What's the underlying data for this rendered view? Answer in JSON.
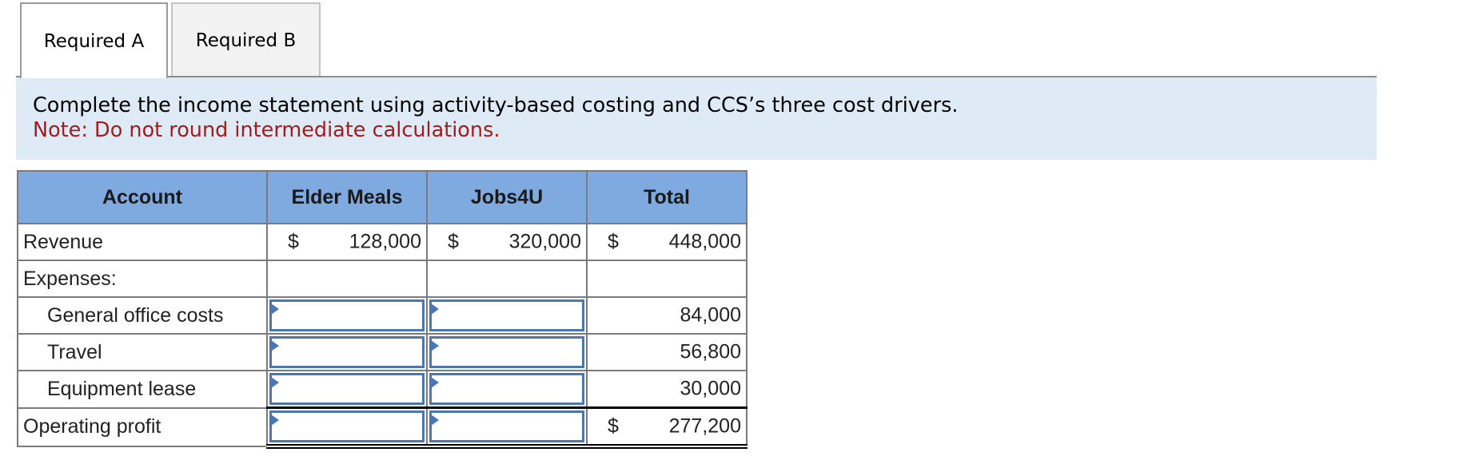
{
  "tabs": [
    {
      "label": "Required A",
      "active": true
    },
    {
      "label": "Required B",
      "active": false
    }
  ],
  "instructions": {
    "text": "Complete the income statement using activity-based costing and CCS’s three cost drivers.",
    "note": "Note: Do not round intermediate calculations."
  },
  "table": {
    "headers": [
      "Account",
      "Elder Meals",
      "Jobs4U",
      "Total"
    ],
    "rows": [
      {
        "account": "Revenue",
        "elder_meals": {
          "dollar": "$",
          "value": "128,000"
        },
        "jobs4u": {
          "dollar": "$",
          "value": "320,000"
        },
        "total": {
          "dollar": "$",
          "value": "448,000"
        }
      },
      {
        "account": "Expenses:",
        "elder_meals": "",
        "jobs4u": "",
        "total": ""
      },
      {
        "account": "General office costs",
        "elder_meals": "",
        "jobs4u": "",
        "total": {
          "value": "84,000"
        }
      },
      {
        "account": "Travel",
        "elder_meals": "",
        "jobs4u": "",
        "total": {
          "value": "56,800"
        }
      },
      {
        "account": "Equipment lease",
        "elder_meals": "",
        "jobs4u": "",
        "total": {
          "value": "30,000"
        }
      },
      {
        "account": "Operating profit",
        "elder_meals": "",
        "jobs4u": "",
        "total": {
          "dollar": "$",
          "value": "277,200"
        }
      }
    ]
  },
  "colors": {
    "header_bg": "#7faadf",
    "info_bg": "#deebf7",
    "note_text": "#a31c1c",
    "input_border": "#4a76b4"
  }
}
